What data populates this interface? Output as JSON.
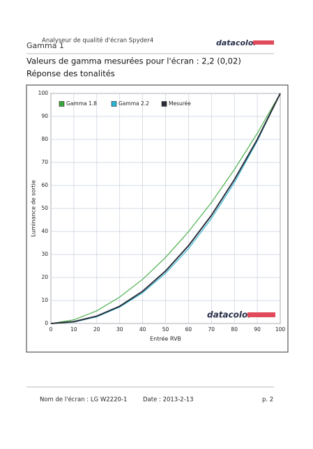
{
  "header": {
    "title": "Analyseur de qualité d'écran Spyder4",
    "section": "Gamma 1",
    "logo": "datacolor"
  },
  "heading": "Valeurs de gamma mesurées pour l'écran : 2,2 (0,02)",
  "subheading": "Réponse des tonalités",
  "chart_data": {
    "type": "line",
    "x_label": "Entrée RVB",
    "y_label": "Luminance de sortie",
    "x": [
      0,
      10,
      20,
      30,
      40,
      50,
      60,
      70,
      80,
      90,
      100
    ],
    "series": [
      {
        "name": "Gamma 1.8",
        "color": "#3aa83a",
        "values": [
          0,
          1.6,
          5.5,
          11.5,
          19.2,
          28.7,
          39.9,
          52.6,
          66.9,
          82.7,
          100
        ]
      },
      {
        "name": "Gamma 2.2",
        "color": "#29b6d6",
        "values": [
          0,
          0.6,
          2.9,
          7.1,
          13.3,
          21.8,
          32.5,
          45.6,
          61.2,
          79.3,
          100
        ]
      },
      {
        "name": "Mesurée",
        "color": "#2b2f3a",
        "values": [
          0,
          0.8,
          3.2,
          7.5,
          14,
          22.8,
          33.8,
          47,
          62.5,
          80,
          100
        ]
      }
    ],
    "xlim": [
      0,
      100
    ],
    "ylim": [
      0,
      100
    ],
    "xticks": [
      0,
      10,
      20,
      30,
      40,
      50,
      60,
      70,
      80,
      90,
      100
    ],
    "yticks": [
      0,
      10,
      20,
      30,
      40,
      50,
      60,
      70,
      80,
      90,
      100
    ],
    "grid": true,
    "legend": "upper left",
    "watermark": "datacolor"
  },
  "footer": {
    "screen": "Nom de l'écran : LG W2220-1",
    "date": "Date : 2013-2-13",
    "page": "p. 2"
  }
}
